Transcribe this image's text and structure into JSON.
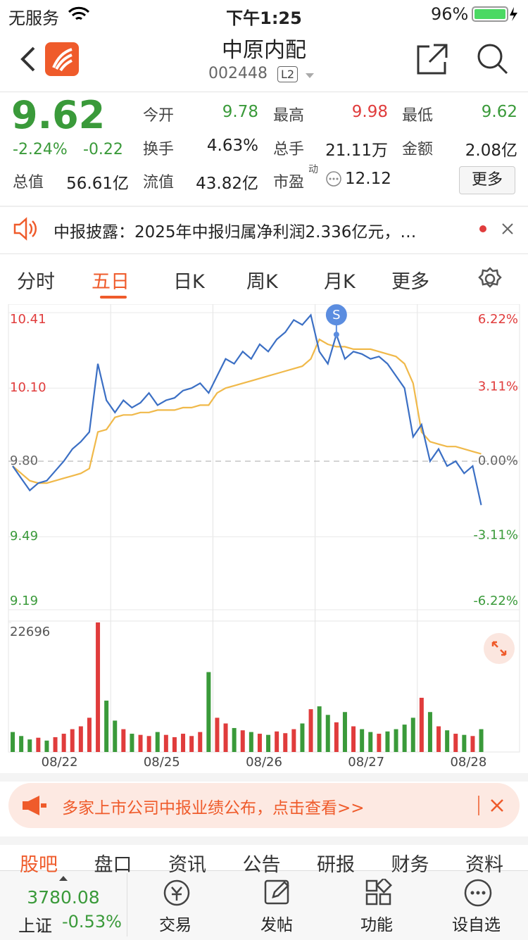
{
  "status_bar": {
    "carrier": "无服务",
    "time": "下午1:25",
    "battery": "96%"
  },
  "header": {
    "title": "中原内配",
    "code": "002448",
    "badge": "L2"
  },
  "quote": {
    "price": "9.62",
    "change_pct": "-2.24%",
    "change": "-0.22",
    "fields": [
      {
        "label": "今开",
        "value": "9.78",
        "color": "#3a9a3a"
      },
      {
        "label": "最高",
        "value": "9.98",
        "color": "#e03c3c"
      },
      {
        "label": "最低",
        "value": "9.62",
        "color": "#3a9a3a"
      },
      {
        "label": "换手",
        "value": "4.63%",
        "color": "#222222"
      },
      {
        "label": "总手",
        "value": "21.11万",
        "color": "#222222"
      },
      {
        "label": "金额",
        "value": "2.08亿",
        "color": "#222222"
      },
      {
        "label": "总值",
        "value": "56.61亿",
        "color": "#222222"
      },
      {
        "label": "流值",
        "value": "43.82亿",
        "color": "#222222"
      },
      {
        "label": "市盈",
        "value": "12.12",
        "color": "#222222"
      }
    ],
    "pe_superscript": "动",
    "more": "更多"
  },
  "notice": {
    "text": "中报披露：2025年中报归属净利润2.336亿元，…"
  },
  "tabs": {
    "items": [
      "分时",
      "五日",
      "日K",
      "周K",
      "月K",
      "更多"
    ],
    "active": 1
  },
  "chart": {
    "type": "line",
    "categories": [
      "08/22",
      "08/25",
      "08/26",
      "08/27",
      "08/28"
    ],
    "ylim": [
      9.19,
      10.41
    ],
    "yticks": [
      10.41,
      {
        "value": 10.1,
        "label": "10.10"
      },
      {
        "value": 9.8,
        "label": "9.80"
      },
      9.49,
      9.19
    ],
    "y2lim": [
      -6.22,
      6.22
    ],
    "y2ticks": [
      {
        "value": 6.22,
        "label": "6.22%"
      },
      {
        "value": 3.11,
        "label": "3.11%"
      },
      {
        "value": 0,
        "label": "0.00%"
      },
      {
        "value": -3.11,
        "label": "-3.11%"
      },
      {
        "value": -6.22,
        "label": "-6.22%"
      }
    ],
    "marker": "S",
    "series": [
      {
        "color": "#3b6fc4",
        "values": [
          9.78,
          9.73,
          9.68,
          9.71,
          9.72,
          9.76,
          9.8,
          9.85,
          9.88,
          9.92,
          10.2,
          10.05,
          10.0,
          10.05,
          10.02,
          10.04,
          10.08,
          10.03,
          10.05,
          10.06,
          10.09,
          10.1,
          10.12,
          10.08,
          10.15,
          10.22,
          10.2,
          10.25,
          10.22,
          10.28,
          10.25,
          10.3,
          10.33,
          10.38,
          10.36,
          10.4,
          10.25,
          10.2,
          10.32,
          10.22,
          10.25,
          10.24,
          10.22,
          10.23,
          10.2,
          10.15,
          10.1,
          9.9,
          9.95,
          9.8,
          9.85,
          9.78,
          9.8,
          9.75,
          9.78,
          9.62,
          null,
          null,
          null,
          null
        ]
      },
      {
        "color": "#f0b94a",
        "values": [
          9.78,
          9.75,
          9.72,
          9.71,
          9.71,
          9.72,
          9.73,
          9.74,
          9.75,
          9.77,
          9.92,
          9.93,
          9.98,
          9.99,
          9.99,
          10.0,
          10.0,
          10.01,
          10.01,
          10.01,
          10.02,
          10.02,
          10.03,
          10.03,
          10.08,
          10.1,
          10.11,
          10.12,
          10.13,
          10.14,
          10.15,
          10.16,
          10.17,
          10.18,
          10.19,
          10.22,
          10.3,
          10.28,
          10.27,
          10.27,
          10.26,
          10.26,
          10.26,
          10.25,
          10.24,
          10.23,
          10.2,
          10.12,
          9.92,
          9.88,
          9.87,
          9.86,
          9.86,
          9.85,
          9.84,
          9.83,
          null,
          null,
          null,
          null
        ]
      }
    ]
  },
  "volume": {
    "ylim": [
      0,
      22696
    ],
    "yticks": [
      22696
    ],
    "values": [
      3500,
      2800,
      2200,
      2500,
      2000,
      2600,
      3200,
      4000,
      4500,
      6000,
      22696,
      9000,
      5500,
      4000,
      3200,
      3000,
      2800,
      3500,
      3000,
      2600,
      3200,
      2800,
      3500,
      14000,
      6000,
      5000,
      4200,
      3800,
      3500,
      3200,
      3000,
      3600,
      3300,
      4000,
      5000,
      7500,
      8000,
      6500,
      5200,
      7000,
      4500,
      4000,
      3500,
      3200,
      3600,
      4000,
      4800,
      6000,
      9500,
      7000,
      4500,
      3800,
      3200,
      3000,
      2800,
      4000,
      null,
      null,
      null,
      null
    ],
    "colors": [
      "#3a9a3a",
      "#3a9a3a",
      "#3a9a3a",
      "#e03c3c",
      "#3a9a3a",
      "#e03c3c",
      "#e03c3c",
      "#e03c3c",
      "#e03c3c",
      "#e03c3c",
      "#e03c3c",
      "#3a9a3a",
      "#3a9a3a",
      "#e03c3c",
      "#3a9a3a",
      "#e03c3c",
      "#e03c3c",
      "#3a9a3a",
      "#e03c3c",
      "#e03c3c",
      "#e03c3c",
      "#e03c3c",
      "#e03c3c",
      "#3a9a3a",
      "#e03c3c",
      "#e03c3c",
      "#3a9a3a",
      "#e03c3c",
      "#3a9a3a",
      "#e03c3c",
      "#3a9a3a",
      "#e03c3c",
      "#e03c3c",
      "#e03c3c",
      "#3a9a3a",
      "#e03c3c",
      "#3a9a3a",
      "#3a9a3a",
      "#e03c3c",
      "#3a9a3a",
      "#e03c3c",
      "#3a9a3a",
      "#3a9a3a",
      "#e03c3c",
      "#3a9a3a",
      "#3a9a3a",
      "#3a9a3a",
      "#3a9a3a",
      "#e03c3c",
      "#3a9a3a",
      "#e03c3c",
      "#3a9a3a",
      "#e03c3c",
      "#3a9a3a",
      "#e03c3c",
      "#3a9a3a",
      null,
      null,
      null,
      null
    ]
  },
  "banner": {
    "text": "多家上市公司中报业绩公布，点击查看>>"
  },
  "sub_tabs": {
    "items": [
      "股吧",
      "盘口",
      "资讯",
      "公告",
      "研报",
      "财务",
      "资料"
    ],
    "active": 0
  },
  "footer": {
    "index_value": "3780.08",
    "index_name": "上证",
    "index_change": "-0.53%",
    "items": [
      "交易",
      "发帖",
      "功能",
      "设自选"
    ]
  }
}
